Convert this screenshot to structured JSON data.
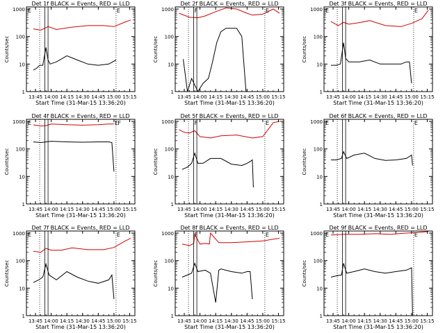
{
  "figure": {
    "xlabel": "Start Time (31-Mar-15 13:36:20)",
    "ylabel": "Counts/sec",
    "x_ticks": [
      "13:45",
      "14:00",
      "14:15",
      "14:30",
      "14:45",
      "15:00",
      "15:15"
    ],
    "y_ticks": [
      "1",
      "10",
      "100",
      "1000"
    ],
    "marker_label_E": "E",
    "marker_label_F": "F",
    "colors": {
      "events": "#000000",
      "lld": "#d40000",
      "axes": "#000000"
    }
  },
  "chart_data": [
    {
      "type": "line",
      "title": "Det 1f BLACK = Events, RED = LLD",
      "xlabel": "Start Time (31-Mar-15 13:36:20)",
      "ylabel": "Counts/sec",
      "scale": "log",
      "ylim": [
        1,
        1000
      ],
      "x_range": [
        "13:36:20",
        "15:20:00"
      ],
      "dotted_lines": [
        "13:49",
        "15:02"
      ],
      "solid_lines": [
        "13:54",
        "13:57"
      ],
      "flags": [
        {
          "label": "E",
          "t": "13:37"
        },
        {
          "label": "E",
          "t": "15:02"
        }
      ],
      "series": [
        {
          "name": "BLACK",
          "color": "#000000",
          "x": [
            "13:43",
            "13:46",
            "13:49",
            "13:52",
            "13:55",
            "13:57",
            "13:59",
            "14:05",
            "14:15",
            "14:25",
            "14:35",
            "14:45",
            "14:55",
            "15:02"
          ],
          "values": [
            6,
            7,
            9,
            9,
            40,
            14,
            10,
            12,
            20,
            14,
            10,
            9,
            10,
            14
          ]
        },
        {
          "name": "RED",
          "color": "#d40000",
          "x": [
            "13:43",
            "13:50",
            "13:55",
            "13:57",
            "14:05",
            "14:20",
            "14:35",
            "14:50",
            "15:00",
            "15:10",
            "15:16"
          ],
          "values": [
            190,
            170,
            210,
            230,
            180,
            220,
            250,
            250,
            230,
            330,
            400
          ]
        }
      ]
    },
    {
      "type": "line",
      "title": "Det 2f BLACK = Events, RED = LLD",
      "xlabel": "Start Time (31-Mar-15 13:36:20)",
      "ylabel": "Counts/sec",
      "scale": "log",
      "ylim": [
        1,
        1000
      ],
      "x_range": [
        "13:36:20",
        "15:20:00"
      ],
      "dotted_lines": [
        "13:49",
        "15:02"
      ],
      "solid_lines": [
        "13:54",
        "13:57"
      ],
      "flags": [
        {
          "label": "F",
          "t": "13:54"
        },
        {
          "label": "E",
          "t": "15:02"
        }
      ],
      "series": [
        {
          "name": "BLACK",
          "color": "#000000",
          "x": [
            "13:44",
            "13:48",
            "13:52",
            "13:58",
            "14:03",
            "14:08",
            "14:12",
            "14:16",
            "14:20",
            "14:25",
            "14:30",
            "14:35",
            "14:40",
            "14:44"
          ],
          "values": [
            15,
            1,
            3,
            1,
            2,
            3,
            12,
            60,
            150,
            200,
            200,
            200,
            100,
            1
          ]
        },
        {
          "name": "RED",
          "color": "#d40000",
          "x": [
            "13:40",
            "13:50",
            "13:58",
            "14:05",
            "14:15",
            "14:25",
            "14:35",
            "14:45",
            "14:50",
            "15:00",
            "15:10",
            "15:16"
          ],
          "values": [
            700,
            500,
            480,
            560,
            800,
            1100,
            1000,
            700,
            600,
            650,
            1000,
            700
          ]
        }
      ]
    },
    {
      "type": "line",
      "title": "Det 3f BLACK = Events, RED = LLD",
      "xlabel": "Start Time (31-Mar-15 13:36:20)",
      "ylabel": "Counts/sec",
      "scale": "log",
      "ylim": [
        1,
        1000
      ],
      "x_range": [
        "13:36:20",
        "15:20:00"
      ],
      "dotted_lines": [
        "13:49",
        "15:02"
      ],
      "solid_lines": [
        "13:54",
        "13:57"
      ],
      "flags": [
        {
          "label": "E",
          "t": "13:37"
        },
        {
          "label": "E",
          "t": "15:02"
        }
      ],
      "series": [
        {
          "name": "BLACK",
          "color": "#000000",
          "x": [
            "13:43",
            "13:48",
            "13:52",
            "13:55",
            "13:57",
            "14:00",
            "14:10",
            "14:20",
            "14:30",
            "14:40",
            "14:50",
            "14:55",
            "14:58",
            "15:00"
          ],
          "values": [
            9,
            9,
            10,
            60,
            16,
            12,
            12,
            14,
            10,
            10,
            10,
            12,
            12,
            2
          ]
        },
        {
          "name": "RED",
          "color": "#d40000",
          "x": [
            "13:43",
            "13:50",
            "13:55",
            "14:00",
            "14:10",
            "14:20",
            "14:35",
            "14:50",
            "15:00",
            "15:10",
            "15:16"
          ],
          "values": [
            350,
            250,
            330,
            280,
            320,
            380,
            250,
            230,
            300,
            450,
            900
          ]
        }
      ]
    },
    {
      "type": "line",
      "title": "Det 4f BLACK = Events, RED = LLD",
      "xlabel": "Start Time (31-Mar-15 13:36:20)",
      "ylabel": "Counts/sec",
      "scale": "log",
      "ylim": [
        1,
        1000
      ],
      "x_range": [
        "13:36:20",
        "15:20:00"
      ],
      "dotted_lines": [
        "13:49",
        "15:02"
      ],
      "solid_lines": [
        "13:54",
        "13:57"
      ],
      "flags": [
        {
          "label": "E",
          "t": "13:37"
        },
        {
          "label": "E",
          "t": "15:00"
        },
        {
          "label": "F",
          "t": "15:03"
        }
      ],
      "series": [
        {
          "name": "BLACK",
          "color": "#000000",
          "x": [
            "13:43",
            "13:50",
            "14:00",
            "14:15",
            "14:30",
            "14:45",
            "14:55",
            "14:58",
            "15:00"
          ],
          "values": [
            180,
            170,
            190,
            180,
            175,
            180,
            180,
            170,
            15
          ]
        },
        {
          "name": "RED",
          "color": "#d40000",
          "x": [
            "13:43",
            "13:50",
            "13:55",
            "14:00",
            "14:15",
            "14:30",
            "14:45",
            "14:55",
            "15:00"
          ],
          "values": [
            750,
            680,
            700,
            800,
            760,
            730,
            760,
            800,
            800
          ]
        }
      ]
    },
    {
      "type": "line",
      "title": "Det 5f BLACK = Events, RED = LLD",
      "xlabel": "Start Time (31-Mar-15 13:36:20)",
      "ylabel": "Counts/sec",
      "scale": "log",
      "ylim": [
        1,
        1000
      ],
      "x_range": [
        "13:36:20",
        "15:20:00"
      ],
      "dotted_lines": [
        "13:49",
        "15:02"
      ],
      "solid_lines": [
        "13:54",
        "13:57"
      ],
      "flags": [
        {
          "label": "F",
          "t": "13:54"
        },
        {
          "label": "E",
          "t": "15:02"
        }
      ],
      "series": [
        {
          "name": "BLACK",
          "color": "#000000",
          "x": [
            "13:43",
            "13:48",
            "13:52",
            "13:55",
            "13:58",
            "14:03",
            "14:10",
            "14:20",
            "14:30",
            "14:40",
            "14:45",
            "14:48",
            "14:50",
            "14:51"
          ],
          "values": [
            18,
            22,
            30,
            70,
            30,
            30,
            45,
            45,
            28,
            25,
            30,
            35,
            40,
            4
          ]
        },
        {
          "name": "RED",
          "color": "#d40000",
          "x": [
            "13:40",
            "13:45",
            "13:50",
            "13:55",
            "14:00",
            "14:10",
            "14:20",
            "14:35",
            "14:50",
            "15:00",
            "15:05",
            "15:10",
            "15:16"
          ],
          "values": [
            500,
            400,
            380,
            460,
            280,
            250,
            300,
            320,
            250,
            280,
            500,
            900,
            1000
          ]
        }
      ]
    },
    {
      "type": "line",
      "title": "Det 6f BLACK = Events, RED = LLD",
      "xlabel": "Start Time (31-Mar-15 13:36:20)",
      "ylabel": "Counts/sec",
      "scale": "log",
      "ylim": [
        1,
        1000
      ],
      "x_range": [
        "13:36:20",
        "15:20:00"
      ],
      "dotted_lines": [
        "13:49",
        "15:02"
      ],
      "solid_lines": [
        "13:54",
        "13:57"
      ],
      "flags": [
        {
          "label": "E",
          "t": "13:37"
        },
        {
          "label": "E",
          "t": "15:02"
        }
      ],
      "series": [
        {
          "name": "BLACK",
          "color": "#000000",
          "x": [
            "13:43",
            "13:48",
            "13:53",
            "13:55",
            "13:58",
            "14:05",
            "14:15",
            "14:25",
            "14:35",
            "14:45",
            "14:55",
            "15:00",
            "15:01"
          ],
          "values": [
            40,
            40,
            45,
            80,
            45,
            60,
            70,
            45,
            38,
            40,
            45,
            60,
            25
          ]
        }
      ]
    },
    {
      "type": "line",
      "title": "Det 7f BLACK = Events, RED = LLD",
      "xlabel": "Start Time (31-Mar-15 13:36:20)",
      "ylabel": "Counts/sec",
      "scale": "log",
      "ylim": [
        1,
        1000
      ],
      "x_range": [
        "13:36:20",
        "15:20:00"
      ],
      "dotted_lines": [
        "13:49",
        "15:02"
      ],
      "solid_lines": [
        "13:54",
        "13:57"
      ],
      "flags": [
        {
          "label": "E",
          "t": "13:37"
        },
        {
          "label": "E",
          "t": "15:02"
        }
      ],
      "series": [
        {
          "name": "BLACK",
          "color": "#000000",
          "x": [
            "13:43",
            "13:48",
            "13:52",
            "13:55",
            "13:58",
            "14:05",
            "14:15",
            "14:25",
            "14:35",
            "14:45",
            "14:55",
            "14:58",
            "15:00"
          ],
          "values": [
            16,
            20,
            25,
            75,
            30,
            20,
            40,
            25,
            18,
            15,
            20,
            30,
            4
          ]
        },
        {
          "name": "RED",
          "color": "#d40000",
          "x": [
            "13:43",
            "13:50",
            "13:55",
            "14:00",
            "14:10",
            "14:20",
            "14:35",
            "14:50",
            "15:00",
            "15:10",
            "15:16"
          ],
          "values": [
            220,
            200,
            280,
            240,
            240,
            290,
            250,
            250,
            300,
            500,
            650
          ]
        }
      ]
    },
    {
      "type": "line",
      "title": "Det 8f BLACK = Events, RED = LLD",
      "xlabel": "Start Time (31-Mar-15 13:36:20)",
      "ylabel": "Counts/sec",
      "scale": "log",
      "ylim": [
        1,
        1000
      ],
      "x_range": [
        "13:36:20",
        "15:20:00"
      ],
      "dotted_lines": [
        "13:49",
        "15:02"
      ],
      "solid_lines": [
        "13:54",
        "13:57"
      ],
      "flags": [
        {
          "label": "F",
          "t": "13:54"
        },
        {
          "label": "E",
          "t": "15:02"
        }
      ],
      "series": [
        {
          "name": "BLACK",
          "color": "#000000",
          "x": [
            "13:43",
            "13:48",
            "13:52",
            "13:55",
            "13:58",
            "14:05",
            "14:10",
            "14:15",
            "14:18",
            "14:20",
            "14:30",
            "14:40",
            "14:45",
            "14:48",
            "14:50"
          ],
          "values": [
            25,
            30,
            35,
            80,
            40,
            45,
            35,
            3,
            45,
            50,
            40,
            35,
            40,
            40,
            4
          ]
        },
        {
          "name": "RED",
          "color": "#d40000",
          "x": [
            "13:43",
            "13:50",
            "13:54",
            "13:55",
            "14:00",
            "14:05",
            "14:09",
            "14:10",
            "14:18",
            "14:30",
            "14:45",
            "15:00",
            "15:16"
          ],
          "values": [
            400,
            350,
            420,
            900,
            400,
            420,
            400,
            1000,
            450,
            450,
            480,
            520,
            650
          ]
        }
      ]
    },
    {
      "type": "line",
      "title": "Det 9f BLACK = Events, RED = LLD",
      "xlabel": "Start Time (31-Mar-15 13:36:20)",
      "ylabel": "Counts/sec",
      "scale": "log",
      "ylim": [
        1,
        1000
      ],
      "x_range": [
        "13:36:20",
        "15:20:00"
      ],
      "dotted_lines": [
        "13:49",
        "15:02"
      ],
      "solid_lines": [
        "13:54",
        "13:57"
      ],
      "flags": [
        {
          "label": "E",
          "t": "13:37"
        },
        {
          "label": "E",
          "t": "15:02"
        }
      ],
      "series": [
        {
          "name": "BLACK",
          "color": "#000000",
          "x": [
            "13:43",
            "13:48",
            "13:53",
            "13:55",
            "13:58",
            "14:05",
            "14:15",
            "14:25",
            "14:35",
            "14:45",
            "14:55",
            "15:00",
            "15:01"
          ],
          "values": [
            25,
            28,
            30,
            80,
            35,
            40,
            50,
            40,
            35,
            40,
            45,
            55,
            1
          ]
        },
        {
          "name": "RED",
          "color": "#d40000",
          "x": [
            "13:43",
            "13:55",
            "14:10",
            "14:25",
            "14:40",
            "14:55",
            "15:05",
            "15:16"
          ],
          "values": [
            850,
            900,
            900,
            950,
            900,
            1000,
            1050,
            1150
          ]
        }
      ]
    }
  ]
}
